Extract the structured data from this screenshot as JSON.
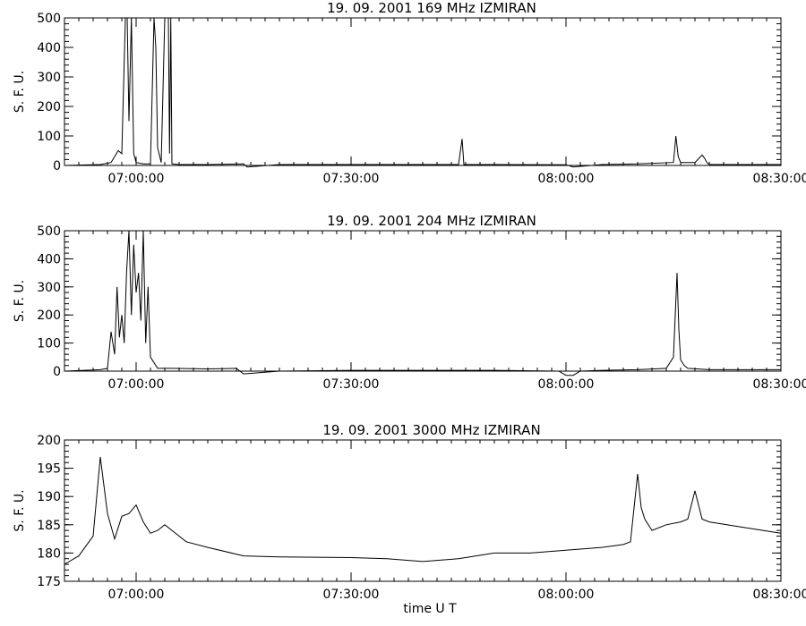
{
  "footer": {
    "xlabel": "time   U T"
  },
  "chart_data": [
    {
      "type": "line",
      "title": "19. 09. 2001    169 MHz    IZMIRAN",
      "ylabel": "S. F. U.",
      "xlabel": "",
      "xlim": [
        "06:50:00",
        "08:30:00"
      ],
      "ylim": [
        0,
        500
      ],
      "xticks": [
        "07:00:00",
        "07:30:00",
        "08:00:00",
        "08:30:00"
      ],
      "yticks": [
        0,
        100,
        200,
        300,
        400,
        500
      ],
      "series": [
        {
          "x": [
            "06:50:00",
            "06:55:00",
            "06:56:30",
            "06:57:00",
            "06:57:30",
            "06:58:00",
            "06:58:30",
            "06:58:45",
            "06:59:00",
            "06:59:20",
            "06:59:40",
            "07:00:00",
            "07:01:00",
            "07:02:00",
            "07:02:30",
            "07:02:45",
            "07:03:00",
            "07:03:30",
            "07:04:00",
            "07:04:30",
            "07:04:40",
            "07:04:50",
            "07:05:00",
            "07:06:00",
            "07:10:00",
            "07:15:00",
            "07:15:30",
            "07:20:00",
            "07:30:00",
            "07:45:00",
            "07:45:30",
            "07:45:45",
            "07:46:00",
            "07:50:00",
            "08:00:00",
            "08:01:00",
            "08:05:00",
            "08:10:00",
            "08:15:00",
            "08:15:20",
            "08:15:40",
            "08:16:00",
            "08:18:00",
            "08:19:00",
            "08:19:20",
            "08:19:40",
            "08:20:00",
            "08:25:00",
            "08:30:00"
          ],
          "y": [
            0,
            3,
            10,
            30,
            50,
            40,
            500,
            500,
            150,
            500,
            40,
            10,
            5,
            5,
            500,
            400,
            60,
            10,
            500,
            500,
            40,
            500,
            5,
            3,
            3,
            5,
            -5,
            3,
            3,
            3,
            90,
            3,
            3,
            3,
            2,
            -5,
            3,
            5,
            10,
            100,
            30,
            10,
            10,
            35,
            25,
            10,
            3,
            3,
            3
          ]
        }
      ]
    },
    {
      "type": "line",
      "title": "19. 09. 2001    204 MHz    IZMIRAN",
      "ylabel": "S. F. U.",
      "xlabel": "",
      "xlim": [
        "06:50:00",
        "08:30:00"
      ],
      "ylim": [
        0,
        500
      ],
      "xticks": [
        "07:00:00",
        "07:30:00",
        "08:00:00",
        "08:30:00"
      ],
      "yticks": [
        0,
        100,
        200,
        300,
        400,
        500
      ],
      "series": [
        {
          "x": [
            "06:50:00",
            "06:55:00",
            "06:56:00",
            "06:56:30",
            "06:57:00",
            "06:57:20",
            "06:57:40",
            "06:58:00",
            "06:58:20",
            "06:58:40",
            "06:59:00",
            "06:59:20",
            "06:59:40",
            "07:00:00",
            "07:00:20",
            "07:00:40",
            "07:01:00",
            "07:01:20",
            "07:01:40",
            "07:02:00",
            "07:03:00",
            "07:05:00",
            "07:10:00",
            "07:14:00",
            "07:15:00",
            "07:20:00",
            "07:30:00",
            "07:40:00",
            "07:50:00",
            "07:59:00",
            "08:00:00",
            "08:01:00",
            "08:02:00",
            "08:05:00",
            "08:10:00",
            "08:14:00",
            "08:15:00",
            "08:15:30",
            "08:15:45",
            "08:16:00",
            "08:16:30",
            "08:17:00",
            "08:20:00",
            "08:30:00"
          ],
          "y": [
            0,
            5,
            10,
            140,
            60,
            300,
            120,
            200,
            100,
            350,
            500,
            200,
            450,
            280,
            350,
            180,
            500,
            100,
            300,
            50,
            10,
            10,
            8,
            10,
            -10,
            0,
            3,
            3,
            3,
            0,
            -15,
            -15,
            0,
            3,
            5,
            10,
            50,
            350,
            150,
            40,
            20,
            10,
            5,
            5
          ]
        }
      ]
    },
    {
      "type": "line",
      "title": "19. 09. 2001    3000 MHz    IZMIRAN",
      "ylabel": "S. F. U.",
      "xlabel": "time   U T",
      "xlim": [
        "06:50:00",
        "08:30:00"
      ],
      "ylim": [
        175,
        200
      ],
      "xticks": [
        "07:00:00",
        "07:30:00",
        "08:00:00",
        "08:30:00"
      ],
      "yticks": [
        175,
        180,
        185,
        190,
        195,
        200
      ],
      "series": [
        {
          "x": [
            "06:50:00",
            "06:52:00",
            "06:54:00",
            "06:55:00",
            "06:56:00",
            "06:57:00",
            "06:58:00",
            "06:59:00",
            "07:00:00",
            "07:01:00",
            "07:02:00",
            "07:03:00",
            "07:04:00",
            "07:05:00",
            "07:07:00",
            "07:10:00",
            "07:15:00",
            "07:20:00",
            "07:30:00",
            "07:35:00",
            "07:40:00",
            "07:45:00",
            "07:50:00",
            "07:55:00",
            "08:00:00",
            "08:05:00",
            "08:08:00",
            "08:09:00",
            "08:10:00",
            "08:10:30",
            "08:11:00",
            "08:12:00",
            "08:14:00",
            "08:16:00",
            "08:17:00",
            "08:18:00",
            "08:19:00",
            "08:20:00",
            "08:25:00",
            "08:30:00"
          ],
          "y": [
            178,
            179.5,
            183,
            197,
            187,
            182.5,
            186.5,
            187,
            188.5,
            185.5,
            183.5,
            184,
            185,
            184,
            182,
            181,
            179.5,
            179.3,
            179.2,
            179,
            178.5,
            179,
            180,
            180,
            180.5,
            181,
            181.5,
            182,
            194,
            188,
            186,
            184,
            185,
            185.5,
            186,
            191,
            186,
            185.5,
            184.5,
            183.5
          ]
        }
      ]
    }
  ]
}
